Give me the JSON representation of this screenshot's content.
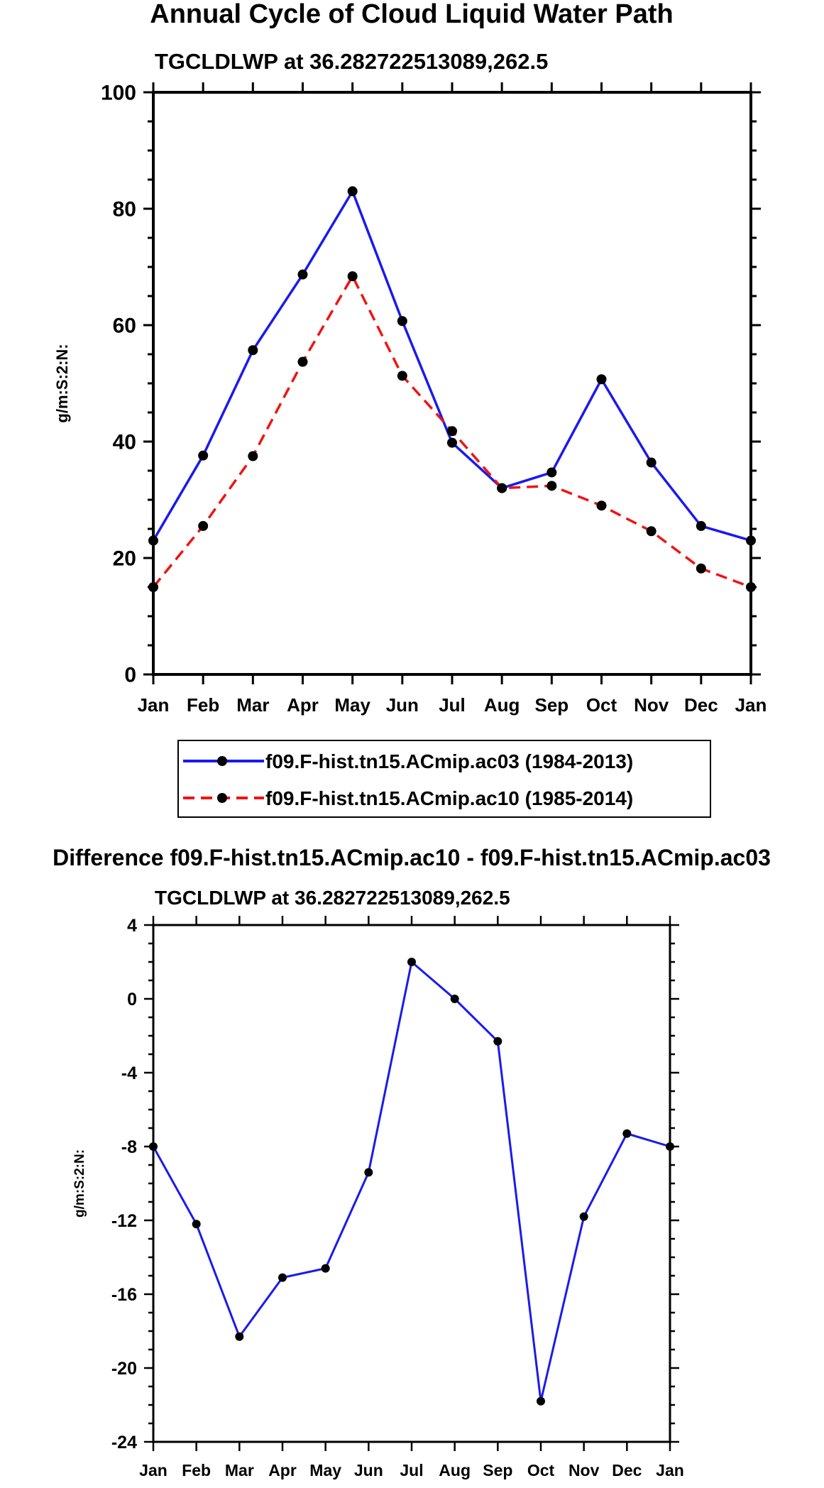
{
  "colors": {
    "blue": "#1a1aef",
    "red": "#f01414",
    "black": "#000000"
  },
  "chart_data": [
    {
      "type": "line",
      "title": "Annual Cycle of Cloud Liquid Water Path",
      "subtitle": "TGCLDLWP at 36.282722513089,262.5",
      "xlabel": "",
      "ylabel": "g/m:S:2:N:",
      "categories": [
        "Jan",
        "Feb",
        "Mar",
        "Apr",
        "May",
        "Jun",
        "Jul",
        "Aug",
        "Sep",
        "Oct",
        "Nov",
        "Dec",
        "Jan"
      ],
      "ylim": [
        0,
        100
      ],
      "yticks": [
        0,
        20,
        40,
        60,
        80,
        100
      ],
      "series": [
        {
          "name": "f09.F-hist.tn15.ACmip.ac03 (1984-2013)",
          "color": "#1a1aef",
          "dash": "solid",
          "values": [
            23.0,
            37.6,
            55.7,
            68.7,
            83.0,
            60.7,
            39.8,
            32.0,
            34.7,
            50.7,
            36.4,
            25.5,
            23.0
          ]
        },
        {
          "name": "f09.F-hist.tn15.ACmip.ac10 (1985-2014)",
          "color": "#f01414",
          "dash": "dashed",
          "values": [
            15.0,
            25.5,
            37.5,
            53.7,
            68.4,
            51.3,
            41.8,
            32.0,
            32.4,
            29.0,
            24.6,
            18.2,
            15.0
          ]
        }
      ],
      "legend": "below"
    },
    {
      "type": "line",
      "title": "Difference f09.F-hist.tn15.ACmip.ac10 - f09.F-hist.tn15.ACmip.ac03",
      "subtitle": "TGCLDLWP at 36.282722513089,262.5",
      "xlabel": "",
      "ylabel": "g/m:S:2:N:",
      "categories": [
        "Jan",
        "Feb",
        "Mar",
        "Apr",
        "May",
        "Jun",
        "Jul",
        "Aug",
        "Sep",
        "Oct",
        "Nov",
        "Dec",
        "Jan"
      ],
      "ylim": [
        -24,
        4
      ],
      "yticks": [
        -24,
        -20,
        -16,
        -12,
        -8,
        -4,
        0,
        4
      ],
      "series": [
        {
          "name": "Difference",
          "color": "#1a1aef",
          "dash": "solid",
          "values": [
            -8.0,
            -12.2,
            -18.3,
            -15.1,
            -14.6,
            -9.4,
            2.0,
            0.0,
            -2.3,
            -21.8,
            -11.8,
            -7.3,
            -8.0
          ]
        }
      ]
    }
  ]
}
